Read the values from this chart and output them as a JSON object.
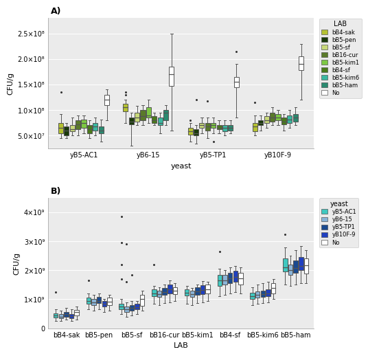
{
  "panel_A": {
    "yeast_groups": [
      "yB5-AC1",
      "yB6-15",
      "yB5-TP1",
      "yB10F-9"
    ],
    "lab_labels": [
      "bB4-sak",
      "bB5-pen",
      "bB5-sf",
      "bB16-cur",
      "bB5-kim1",
      "bB4-sf",
      "bB5-kim6",
      "bB5-ham",
      "No"
    ],
    "lab_colors": [
      "#b5c231",
      "#1a3a0a",
      "#c8d97a",
      "#5a7a2a",
      "#7dc843",
      "#4a7a1a",
      "#3ab8a0",
      "#2a8a70",
      "#ffffff"
    ],
    "ylabel": "CFU/g",
    "xlabel": "yeast",
    "title": "A)",
    "ylim": [
      25000000.0,
      280000000.0
    ],
    "yticks": [
      50000000.0,
      100000000.0,
      150000000.0,
      200000000.0,
      250000000.0
    ],
    "yticklabels": [
      "5.0×10⁷",
      "1.0×10⁸",
      "1.5×10⁸",
      "2.0×10⁸",
      "2.5×10⁸"
    ],
    "boxes": {
      "yB5-AC1": {
        "bB4-sak": {
          "q1": 55000000.0,
          "med": 65000000.0,
          "q3": 75000000.0,
          "lo": 45000000.0,
          "hi": 92000000.0,
          "fliers": [
            135000000.0
          ]
        },
        "bB5-pen": {
          "q1": 50000000.0,
          "med": 60000000.0,
          "q3": 68000000.0,
          "lo": 45000000.0,
          "hi": 75000000.0,
          "fliers": []
        },
        "bB5-sf": {
          "q1": 58000000.0,
          "med": 63000000.0,
          "q3": 70000000.0,
          "lo": 50000000.0,
          "hi": 85000000.0,
          "fliers": []
        },
        "bB16-cur": {
          "q1": 62000000.0,
          "med": 72000000.0,
          "q3": 80000000.0,
          "lo": 50000000.0,
          "hi": 90000000.0,
          "fliers": []
        },
        "bB5-kim1": {
          "q1": 65000000.0,
          "med": 75000000.0,
          "q3": 82000000.0,
          "lo": 55000000.0,
          "hi": 90000000.0,
          "fliers": []
        },
        "bB4-sf": {
          "q1": 55000000.0,
          "med": 62000000.0,
          "q3": 70000000.0,
          "lo": 45000000.0,
          "hi": 80000000.0,
          "fliers": []
        },
        "bB5-kim6": {
          "q1": 60000000.0,
          "med": 68000000.0,
          "q3": 75000000.0,
          "lo": 50000000.0,
          "hi": 85000000.0,
          "fliers": []
        },
        "bB5-ham": {
          "q1": 55000000.0,
          "med": 60000000.0,
          "q3": 68000000.0,
          "lo": 38000000.0,
          "hi": 82000000.0,
          "fliers": []
        },
        "No": {
          "q1": 110000000.0,
          "med": 120000000.0,
          "q3": 130000000.0,
          "lo": 80000000.0,
          "hi": 140000000.0,
          "fliers": []
        }
      },
      "yB6-15": {
        "bB4-sak": {
          "q1": 98000000.0,
          "med": 106000000.0,
          "q3": 112000000.0,
          "lo": 75000000.0,
          "hi": 120000000.0,
          "fliers": [
            130000000.0,
            135000000.0
          ]
        },
        "bB5-pen": {
          "q1": 72000000.0,
          "med": 78000000.0,
          "q3": 85000000.0,
          "lo": 30000000.0,
          "hi": 95000000.0,
          "fliers": []
        },
        "bB5-sf": {
          "q1": 78000000.0,
          "med": 85000000.0,
          "q3": 95000000.0,
          "lo": 70000000.0,
          "hi": 108000000.0,
          "fliers": []
        },
        "bB16-cur": {
          "q1": 80000000.0,
          "med": 88000000.0,
          "q3": 100000000.0,
          "lo": 70000000.0,
          "hi": 110000000.0,
          "fliers": []
        },
        "bB5-kim1": {
          "q1": 85000000.0,
          "med": 90000000.0,
          "q3": 105000000.0,
          "lo": 75000000.0,
          "hi": 120000000.0,
          "fliers": []
        },
        "bB4-sf": {
          "q1": 75000000.0,
          "med": 80000000.0,
          "q3": 88000000.0,
          "lo": 70000000.0,
          "hi": 95000000.0,
          "fliers": []
        },
        "bB5-kim6": {
          "q1": 70000000.0,
          "med": 75000000.0,
          "q3": 85000000.0,
          "lo": 55000000.0,
          "hi": 95000000.0,
          "fliers": []
        },
        "bB5-ham": {
          "q1": 80000000.0,
          "med": 95000000.0,
          "q3": 100000000.0,
          "lo": 70000000.0,
          "hi": 110000000.0,
          "fliers": []
        },
        "No": {
          "q1": 148000000.0,
          "med": 170000000.0,
          "q3": 185000000.0,
          "lo": 60000000.0,
          "hi": 250000000.0,
          "fliers": []
        }
      },
      "yB5-TP1": {
        "bB4-sak": {
          "q1": 52000000.0,
          "med": 58000000.0,
          "q3": 65000000.0,
          "lo": 38000000.0,
          "hi": 75000000.0,
          "fliers": [
            80000000.0
          ]
        },
        "bB5-pen": {
          "q1": 50000000.0,
          "med": 55000000.0,
          "q3": 62000000.0,
          "lo": 35000000.0,
          "hi": 70000000.0,
          "fliers": [
            120000000.0
          ]
        },
        "bB5-sf": {
          "q1": 65000000.0,
          "med": 70000000.0,
          "q3": 75000000.0,
          "lo": 55000000.0,
          "hi": 85000000.0,
          "fliers": []
        },
        "bB16-cur": {
          "q1": 60000000.0,
          "med": 68000000.0,
          "q3": 75000000.0,
          "lo": 45000000.0,
          "hi": 85000000.0,
          "fliers": [
            118000000.0
          ]
        },
        "bB5-kim1": {
          "q1": 65000000.0,
          "med": 70000000.0,
          "q3": 75000000.0,
          "lo": 55000000.0,
          "hi": 85000000.0,
          "fliers": [
            38000000.0
          ]
        },
        "bB4-sf": {
          "q1": 62000000.0,
          "med": 65000000.0,
          "q3": 70000000.0,
          "lo": 55000000.0,
          "hi": 80000000.0,
          "fliers": []
        },
        "bB5-kim6": {
          "q1": 58000000.0,
          "med": 65000000.0,
          "q3": 70000000.0,
          "lo": 50000000.0,
          "hi": 80000000.0,
          "fliers": []
        },
        "bB5-ham": {
          "q1": 60000000.0,
          "med": 65000000.0,
          "q3": 70000000.0,
          "lo": 55000000.0,
          "hi": 80000000.0,
          "fliers": []
        },
        "No": {
          "q1": 145000000.0,
          "med": 155000000.0,
          "q3": 165000000.0,
          "lo": 85000000.0,
          "hi": 190000000.0,
          "fliers": [
            215000000.0
          ]
        }
      },
      "yB10F-9": {
        "bB4-sak": {
          "q1": 58000000.0,
          "med": 68000000.0,
          "q3": 75000000.0,
          "lo": 50000000.0,
          "hi": 90000000.0,
          "fliers": [
            115000000.0
          ]
        },
        "bB5-pen": {
          "q1": 70000000.0,
          "med": 75000000.0,
          "q3": 80000000.0,
          "lo": 60000000.0,
          "hi": 90000000.0,
          "fliers": []
        },
        "bB5-sf": {
          "q1": 75000000.0,
          "med": 80000000.0,
          "q3": 88000000.0,
          "lo": 65000000.0,
          "hi": 95000000.0,
          "fliers": []
        },
        "bB16-cur": {
          "q1": 78000000.0,
          "med": 85000000.0,
          "q3": 95000000.0,
          "lo": 70000000.0,
          "hi": 105000000.0,
          "fliers": []
        },
        "bB5-kim1": {
          "q1": 80000000.0,
          "med": 85000000.0,
          "q3": 92000000.0,
          "lo": 70000000.0,
          "hi": 100000000.0,
          "fliers": []
        },
        "bB4-sf": {
          "q1": 72000000.0,
          "med": 78000000.0,
          "q3": 85000000.0,
          "lo": 60000000.0,
          "hi": 92000000.0,
          "fliers": []
        },
        "bB5-kim6": {
          "q1": 75000000.0,
          "med": 82000000.0,
          "q3": 90000000.0,
          "lo": 65000000.0,
          "hi": 100000000.0,
          "fliers": []
        },
        "bB5-ham": {
          "q1": 78000000.0,
          "med": 85000000.0,
          "q3": 92000000.0,
          "lo": 70000000.0,
          "hi": 105000000.0,
          "fliers": []
        },
        "No": {
          "q1": 178000000.0,
          "med": 190000000.0,
          "q3": 205000000.0,
          "lo": 120000000.0,
          "hi": 230000000.0,
          "fliers": []
        }
      }
    }
  },
  "panel_B": {
    "lab_groups": [
      "bB4-sak",
      "bB5-pen",
      "bB5-sf",
      "bB16-cur",
      "bB5-kim1",
      "bB4-sf",
      "bB5-kim6",
      "bB5-ham"
    ],
    "yeast_labels": [
      "yB5-AC1",
      "yB6-15",
      "yB5-TP1",
      "yB10F-9",
      "No"
    ],
    "yeast_colors": [
      "#40c8c0",
      "#8ab4d8",
      "#1a4a90",
      "#2040c0",
      "#ffffff"
    ],
    "ylabel": "CFU/g",
    "xlabel": "LAB",
    "title": "B)",
    "ylim": [
      0,
      4500000000.0
    ],
    "yticks": [
      0,
      1000000000.0,
      2000000000.0,
      3000000000.0,
      4000000000.0
    ],
    "yticklabels": [
      "0",
      "1×10⁹",
      "2×10⁹",
      "3×10⁹",
      "4×10⁹"
    ],
    "boxes": {
      "bB4-sak": {
        "yB5-AC1": {
          "q1": 380000000.0,
          "med": 450000000.0,
          "q3": 520000000.0,
          "lo": 250000000.0,
          "hi": 650000000.0,
          "fliers": [
            1250000000.0
          ]
        },
        "yB6-15": {
          "q1": 350000000.0,
          "med": 400000000.0,
          "q3": 480000000.0,
          "lo": 250000000.0,
          "hi": 600000000.0,
          "fliers": []
        },
        "yB5-TP1": {
          "q1": 400000000.0,
          "med": 480000000.0,
          "q3": 550000000.0,
          "lo": 300000000.0,
          "hi": 700000000.0,
          "fliers": []
        },
        "yB10F-9": {
          "q1": 350000000.0,
          "med": 420000000.0,
          "q3": 500000000.0,
          "lo": 250000000.0,
          "hi": 650000000.0,
          "fliers": []
        },
        "No": {
          "q1": 450000000.0,
          "med": 550000000.0,
          "q3": 620000000.0,
          "lo": 300000000.0,
          "hi": 750000000.0,
          "fliers": []
        }
      },
      "bB5-pen": {
        "yB5-AC1": {
          "q1": 850000000.0,
          "med": 950000000.0,
          "q3": 1050000000.0,
          "lo": 650000000.0,
          "hi": 1200000000.0,
          "fliers": [
            1650000000.0
          ]
        },
        "yB6-15": {
          "q1": 800000000.0,
          "med": 900000000.0,
          "q3": 1000000000.0,
          "lo": 600000000.0,
          "hi": 1150000000.0,
          "fliers": []
        },
        "yB5-TP1": {
          "q1": 880000000.0,
          "med": 950000000.0,
          "q3": 1080000000.0,
          "lo": 650000000.0,
          "hi": 1200000000.0,
          "fliers": []
        },
        "yB10F-9": {
          "q1": 750000000.0,
          "med": 850000000.0,
          "q3": 950000000.0,
          "lo": 550000000.0,
          "hi": 1000000000.0,
          "fliers": []
        },
        "No": {
          "q1": 800000000.0,
          "med": 920000000.0,
          "q3": 1050000000.0,
          "lo": 600000000.0,
          "hi": 1150000000.0,
          "fliers": []
        }
      },
      "bB5-sf": {
        "yB5-AC1": {
          "q1": 650000000.0,
          "med": 750000000.0,
          "q3": 850000000.0,
          "lo": 500000000.0,
          "hi": 1000000000.0,
          "fliers": [
            1700000000.0,
            2200000000.0,
            2950000000.0,
            3850000000.0
          ]
        },
        "yB6-15": {
          "q1": 550000000.0,
          "med": 650000000.0,
          "q3": 750000000.0,
          "lo": 400000000.0,
          "hi": 900000000.0,
          "fliers": [
            1600000000.0,
            2900000000.0
          ]
        },
        "yB5-TP1": {
          "q1": 600000000.0,
          "med": 700000000.0,
          "q3": 800000000.0,
          "lo": 450000000.0,
          "hi": 950000000.0,
          "fliers": [
            1850000000.0
          ]
        },
        "yB10F-9": {
          "q1": 650000000.0,
          "med": 720000000.0,
          "q3": 850000000.0,
          "lo": 500000000.0,
          "hi": 950000000.0,
          "fliers": []
        },
        "No": {
          "q1": 780000000.0,
          "med": 1000000000.0,
          "q3": 1150000000.0,
          "lo": 600000000.0,
          "hi": 1300000000.0,
          "fliers": []
        }
      },
      "bB16-cur": {
        "yB5-AC1": {
          "q1": 1100000000.0,
          "med": 1200000000.0,
          "q3": 1350000000.0,
          "lo": 850000000.0,
          "hi": 1450000000.0,
          "fliers": [
            2200000000.0
          ]
        },
        "yB6-15": {
          "q1": 1080000000.0,
          "med": 1180000000.0,
          "q3": 1300000000.0,
          "lo": 800000000.0,
          "hi": 1420000000.0,
          "fliers": []
        },
        "yB5-TP1": {
          "q1": 1150000000.0,
          "med": 1250000000.0,
          "q3": 1400000000.0,
          "lo": 880000000.0,
          "hi": 1500000000.0,
          "fliers": []
        },
        "yB10F-9": {
          "q1": 1200000000.0,
          "med": 1350000000.0,
          "q3": 1500000000.0,
          "lo": 900000000.0,
          "hi": 1650000000.0,
          "fliers": []
        },
        "No": {
          "q1": 1180000000.0,
          "med": 1300000000.0,
          "q3": 1420000000.0,
          "lo": 950000000.0,
          "hi": 1550000000.0,
          "fliers": []
        }
      },
      "bB5-kim1": {
        "yB5-AC1": {
          "q1": 1120000000.0,
          "med": 1220000000.0,
          "q3": 1350000000.0,
          "lo": 850000000.0,
          "hi": 1450000000.0,
          "fliers": []
        },
        "yB6-15": {
          "q1": 1080000000.0,
          "med": 1180000000.0,
          "q3": 1300000000.0,
          "lo": 800000000.0,
          "hi": 1400000000.0,
          "fliers": []
        },
        "yB5-TP1": {
          "q1": 1150000000.0,
          "med": 1280000000.0,
          "q3": 1420000000.0,
          "lo": 880000000.0,
          "hi": 1520000000.0,
          "fliers": []
        },
        "yB10F-9": {
          "q1": 1180000000.0,
          "med": 1320000000.0,
          "q3": 1480000000.0,
          "lo": 900000000.0,
          "hi": 1620000000.0,
          "fliers": []
        },
        "No": {
          "q1": 1200000000.0,
          "med": 1350000000.0,
          "q3": 1500000000.0,
          "lo": 950000000.0,
          "hi": 1600000000.0,
          "fliers": []
        }
      },
      "bB4-sf": {
        "yB5-AC1": {
          "q1": 1450000000.0,
          "med": 1650000000.0,
          "q3": 1850000000.0,
          "lo": 1100000000.0,
          "hi": 2050000000.0,
          "fliers": [
            2650000000.0
          ]
        },
        "yB6-15": {
          "q1": 1500000000.0,
          "med": 1650000000.0,
          "q3": 1850000000.0,
          "lo": 1150000000.0,
          "hi": 2000000000.0,
          "fliers": []
        },
        "yB5-TP1": {
          "q1": 1550000000.0,
          "med": 1720000000.0,
          "q3": 1920000000.0,
          "lo": 1200000000.0,
          "hi": 2100000000.0,
          "fliers": []
        },
        "yB10F-9": {
          "q1": 1600000000.0,
          "med": 1780000000.0,
          "q3": 1980000000.0,
          "lo": 1250000000.0,
          "hi": 2150000000.0,
          "fliers": []
        },
        "No": {
          "q1": 1500000000.0,
          "med": 1720000000.0,
          "q3": 1920000000.0,
          "lo": 1200000000.0,
          "hi": 2100000000.0,
          "fliers": []
        }
      },
      "bB5-kim6": {
        "yB5-AC1": {
          "q1": 1000000000.0,
          "med": 1100000000.0,
          "q3": 1220000000.0,
          "lo": 800000000.0,
          "hi": 1420000000.0,
          "fliers": []
        },
        "yB6-15": {
          "q1": 1050000000.0,
          "med": 1150000000.0,
          "q3": 1280000000.0,
          "lo": 850000000.0,
          "hi": 1500000000.0,
          "fliers": []
        },
        "yB5-TP1": {
          "q1": 1080000000.0,
          "med": 1180000000.0,
          "q3": 1300000000.0,
          "lo": 880000000.0,
          "hi": 1550000000.0,
          "fliers": []
        },
        "yB10F-9": {
          "q1": 1100000000.0,
          "med": 1200000000.0,
          "q3": 1350000000.0,
          "lo": 900000000.0,
          "hi": 1600000000.0,
          "fliers": []
        },
        "No": {
          "q1": 1200000000.0,
          "med": 1380000000.0,
          "q3": 1550000000.0,
          "lo": 1000000000.0,
          "hi": 1700000000.0,
          "fliers": []
        }
      },
      "bB5-ham": {
        "yB5-AC1": {
          "q1": 1950000000.0,
          "med": 2100000000.0,
          "q3": 2400000000.0,
          "lo": 1500000000.0,
          "hi": 2800000000.0,
          "fliers": [
            3250000000.0
          ]
        },
        "yB6-15": {
          "q1": 1850000000.0,
          "med": 2000000000.0,
          "q3": 2200000000.0,
          "lo": 1450000000.0,
          "hi": 2500000000.0,
          "fliers": []
        },
        "yB5-TP1": {
          "q1": 1920000000.0,
          "med": 2080000000.0,
          "q3": 2350000000.0,
          "lo": 1500000000.0,
          "hi": 2700000000.0,
          "fliers": []
        },
        "yB10F-9": {
          "q1": 2000000000.0,
          "med": 2150000000.0,
          "q3": 2450000000.0,
          "lo": 1550000000.0,
          "hi": 2850000000.0,
          "fliers": []
        },
        "No": {
          "q1": 1900000000.0,
          "med": 2180000000.0,
          "q3": 2420000000.0,
          "lo": 1550000000.0,
          "hi": 2700000000.0,
          "fliers": []
        }
      }
    }
  },
  "fig_bg": "#f0f0f0",
  "panel_bg": "#f0f0f0"
}
